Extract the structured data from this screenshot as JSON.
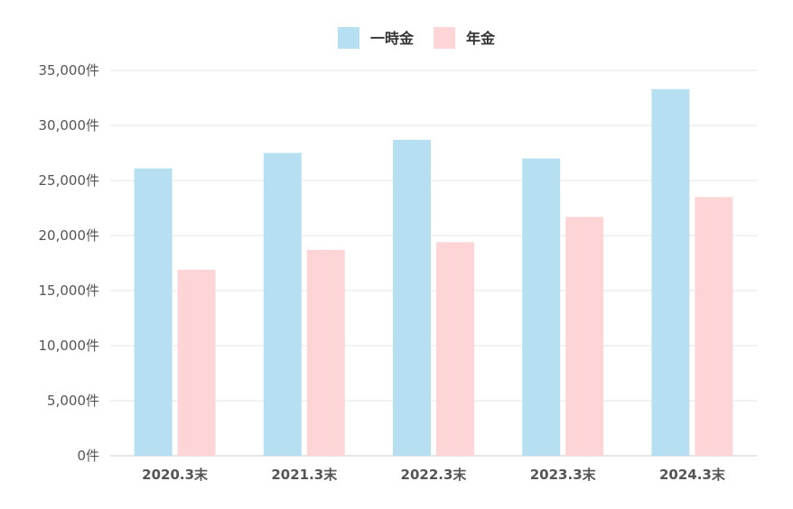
{
  "chart_data": {
    "type": "bar",
    "categories": [
      "2020.3末",
      "2021.3末",
      "2022.3末",
      "2023.3末",
      "2024.3末"
    ],
    "series": [
      {
        "name": "一時金",
        "color": "#b6e0f2",
        "values": [
          26100,
          27500,
          28700,
          27000,
          33300
        ]
      },
      {
        "name": "年金",
        "color": "#fdd5d7",
        "values": [
          16900,
          18700,
          19400,
          21700,
          23500
        ]
      }
    ],
    "ylim": [
      0,
      35000
    ],
    "ytick_values": [
      0,
      5000,
      10000,
      15000,
      20000,
      25000,
      30000,
      35000
    ],
    "ytick_labels": [
      "0件",
      "5,000件",
      "10,000件",
      "15,000件",
      "20,000件",
      "25,000件",
      "30,000件",
      "35,000件"
    ],
    "grid": true,
    "legend_position": "top-center"
  }
}
